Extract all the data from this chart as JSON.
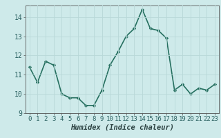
{
  "x": [
    0,
    1,
    2,
    3,
    4,
    5,
    6,
    7,
    8,
    9,
    10,
    11,
    12,
    13,
    14,
    15,
    16,
    17,
    18,
    19,
    20,
    21,
    22,
    23
  ],
  "y": [
    11.4,
    10.6,
    11.7,
    11.5,
    10.0,
    9.8,
    9.8,
    9.4,
    9.4,
    10.2,
    11.5,
    12.2,
    13.0,
    13.4,
    14.4,
    13.4,
    13.3,
    12.9,
    10.2,
    10.5,
    10.0,
    10.3,
    10.2,
    10.5
  ],
  "line_color": "#267060",
  "marker": "D",
  "marker_size": 2.2,
  "xlabel": "Humidex (Indice chaleur)",
  "xlabel_style": "italic",
  "xlabel_weight": "bold",
  "ylim": [
    9,
    14.6
  ],
  "yticks": [
    9,
    10,
    11,
    12,
    13,
    14
  ],
  "xticks": [
    0,
    1,
    2,
    3,
    4,
    5,
    6,
    7,
    8,
    9,
    10,
    11,
    12,
    13,
    14,
    15,
    16,
    17,
    18,
    19,
    20,
    21,
    22,
    23
  ],
  "bg_color": "#ceeaea",
  "grid_color": "#b8d8d8",
  "axis_color": "#505050",
  "linewidth": 1.2,
  "tick_fontsize": 6.5,
  "xlabel_fontsize": 7.5
}
